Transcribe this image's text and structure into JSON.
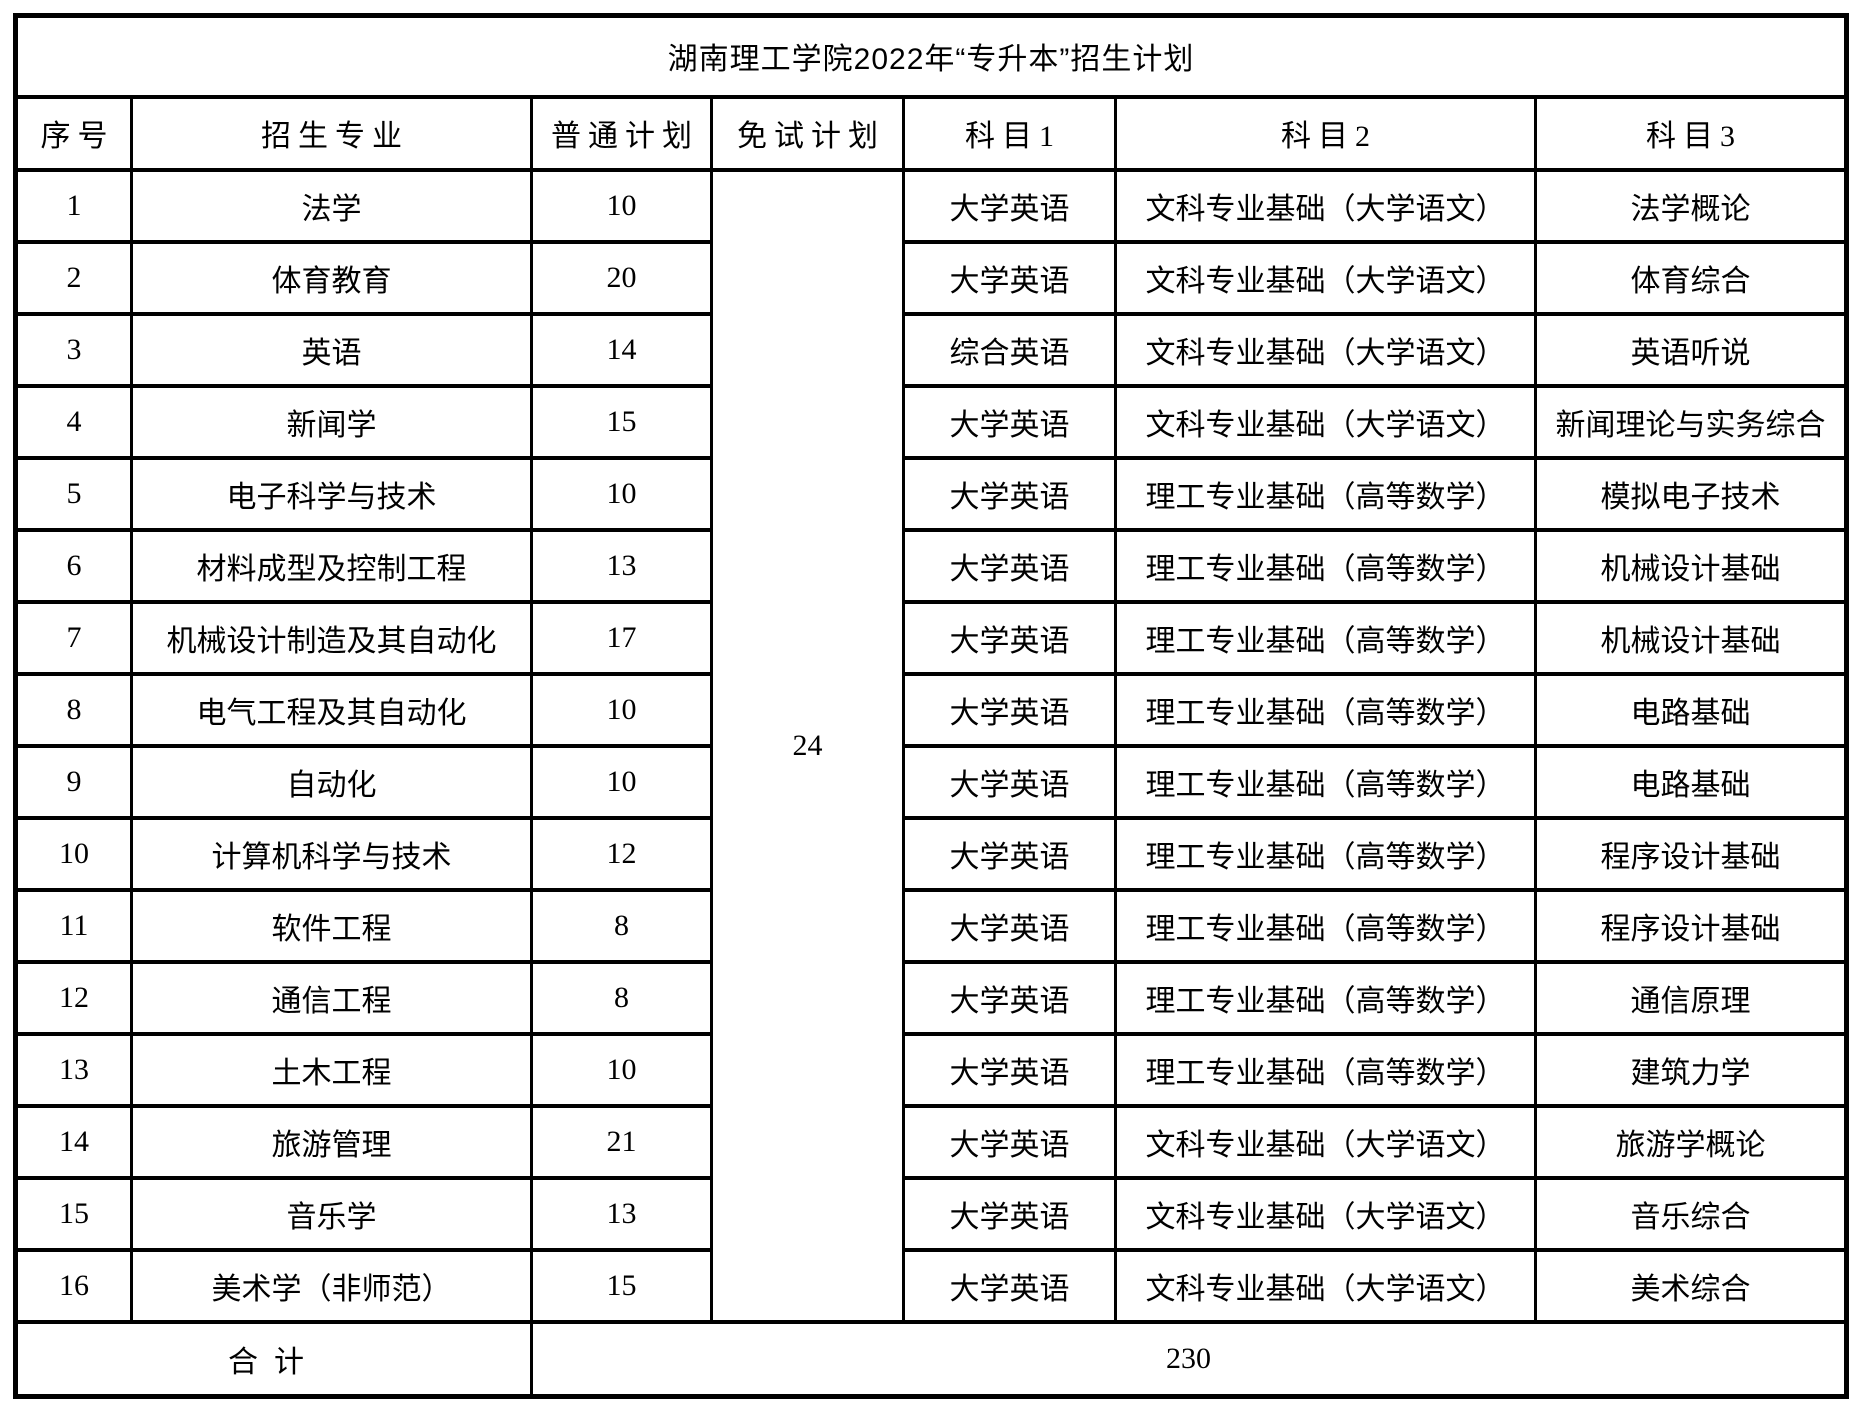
{
  "page": {
    "background_color": "#ffffff",
    "text_color": "#000000",
    "border_color": "#000000"
  },
  "table": {
    "title": "湖南理工学院2022年“专升本”招生计划",
    "columns": [
      "序号",
      "招生专业",
      "普通计划",
      "免试计划",
      "科目1",
      "科目2",
      "科目3"
    ],
    "exempt_plan_total": "24",
    "rows": [
      {
        "no": "1",
        "major": "法学",
        "regular": "10",
        "sub1": "大学英语",
        "sub2": "文科专业基础（大学语文）",
        "sub3": "法学概论"
      },
      {
        "no": "2",
        "major": "体育教育",
        "regular": "20",
        "sub1": "大学英语",
        "sub2": "文科专业基础（大学语文）",
        "sub3": "体育综合"
      },
      {
        "no": "3",
        "major": "英语",
        "regular": "14",
        "sub1": "综合英语",
        "sub2": "文科专业基础（大学语文）",
        "sub3": "英语听说"
      },
      {
        "no": "4",
        "major": "新闻学",
        "regular": "15",
        "sub1": "大学英语",
        "sub2": "文科专业基础（大学语文）",
        "sub3": "新闻理论与实务综合"
      },
      {
        "no": "5",
        "major": "电子科学与技术",
        "regular": "10",
        "sub1": "大学英语",
        "sub2": "理工专业基础（高等数学）",
        "sub3": "模拟电子技术"
      },
      {
        "no": "6",
        "major": "材料成型及控制工程",
        "regular": "13",
        "sub1": "大学英语",
        "sub2": "理工专业基础（高等数学）",
        "sub3": "机械设计基础"
      },
      {
        "no": "7",
        "major": "机械设计制造及其自动化",
        "regular": "17",
        "sub1": "大学英语",
        "sub2": "理工专业基础（高等数学）",
        "sub3": "机械设计基础"
      },
      {
        "no": "8",
        "major": "电气工程及其自动化",
        "regular": "10",
        "sub1": "大学英语",
        "sub2": "理工专业基础（高等数学）",
        "sub3": "电路基础"
      },
      {
        "no": "9",
        "major": "自动化",
        "regular": "10",
        "sub1": "大学英语",
        "sub2": "理工专业基础（高等数学）",
        "sub3": "电路基础"
      },
      {
        "no": "10",
        "major": "计算机科学与技术",
        "regular": "12",
        "sub1": "大学英语",
        "sub2": "理工专业基础（高等数学）",
        "sub3": "程序设计基础"
      },
      {
        "no": "11",
        "major": "软件工程",
        "regular": "8",
        "sub1": "大学英语",
        "sub2": "理工专业基础（高等数学）",
        "sub3": "程序设计基础"
      },
      {
        "no": "12",
        "major": "通信工程",
        "regular": "8",
        "sub1": "大学英语",
        "sub2": "理工专业基础（高等数学）",
        "sub3": "通信原理"
      },
      {
        "no": "13",
        "major": "土木工程",
        "regular": "10",
        "sub1": "大学英语",
        "sub2": "理工专业基础（高等数学）",
        "sub3": "建筑力学"
      },
      {
        "no": "14",
        "major": "旅游管理",
        "regular": "21",
        "sub1": "大学英语",
        "sub2": "文科专业基础（大学语文）",
        "sub3": "旅游学概论"
      },
      {
        "no": "15",
        "major": "音乐学",
        "regular": "13",
        "sub1": "大学英语",
        "sub2": "文科专业基础（大学语文）",
        "sub3": "音乐综合"
      },
      {
        "no": "16",
        "major": "美术学（非师范）",
        "regular": "15",
        "sub1": "大学英语",
        "sub2": "文科专业基础（大学语文）",
        "sub3": "美术综合"
      }
    ],
    "footer": {
      "label": "合计",
      "total": "230"
    }
  }
}
